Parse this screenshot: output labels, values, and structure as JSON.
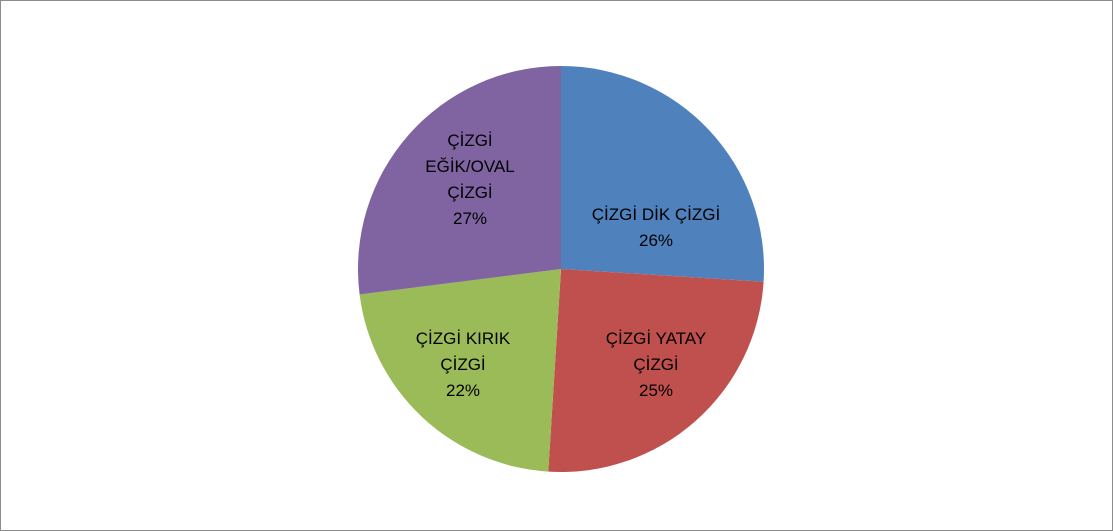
{
  "chart_data": {
    "type": "pie",
    "categories": [
      "ÇİZGİ DİK ÇİZGİ",
      "ÇİZGİ YATAY ÇİZGİ",
      "ÇİZGİ KIRIK ÇİZGİ",
      "ÇİZGİ EĞİK/OVAL ÇİZGİ"
    ],
    "values": [
      26,
      25,
      22,
      27
    ],
    "value_labels": [
      "26%",
      "25%",
      "22%",
      "27%"
    ],
    "colors": [
      "#4f81bd",
      "#c0504d",
      "#9bbb59",
      "#8064a2"
    ]
  }
}
